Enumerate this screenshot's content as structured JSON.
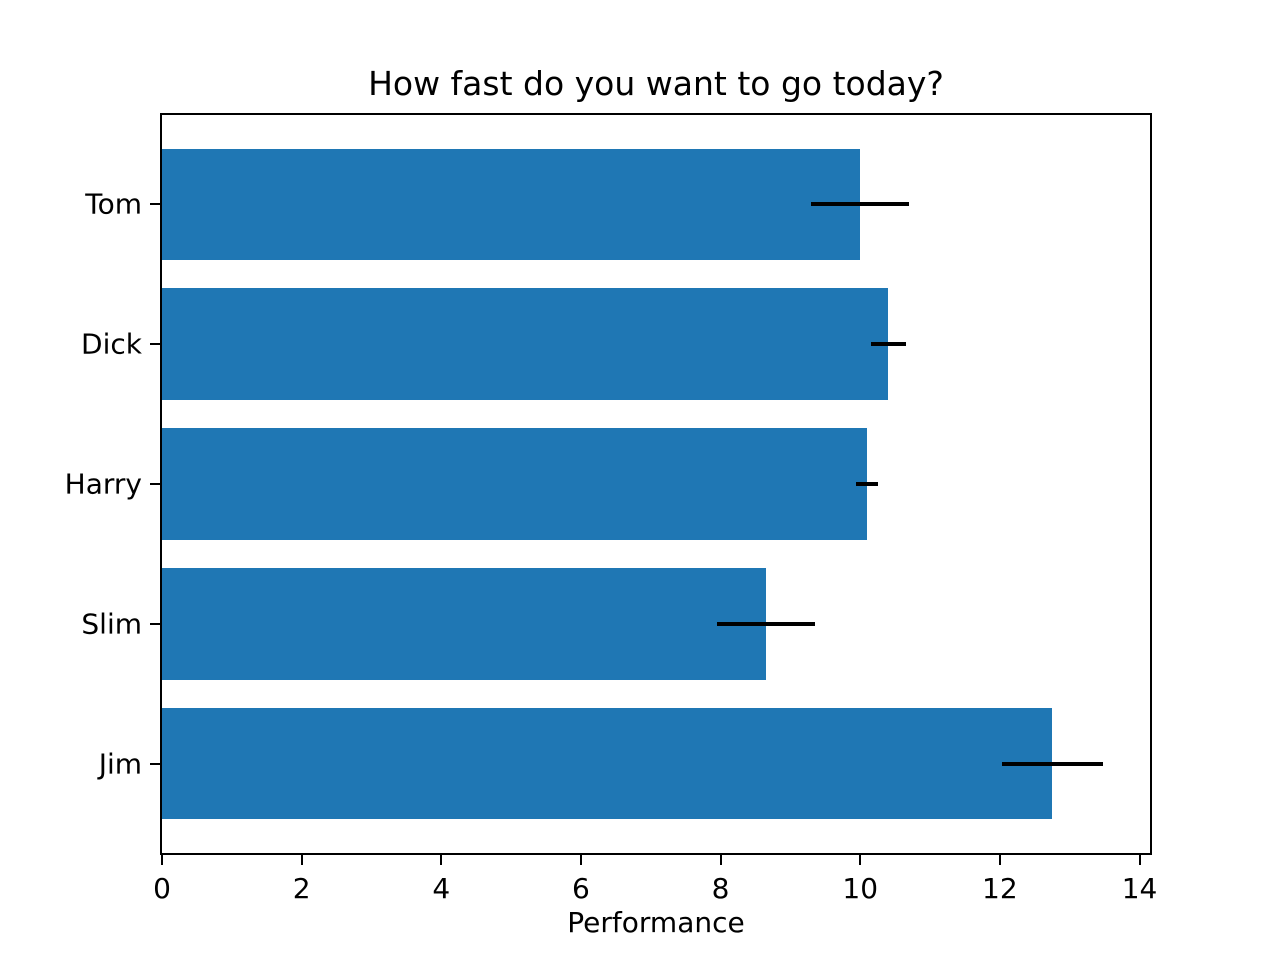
{
  "chart_data": {
    "type": "bar",
    "orientation": "horizontal",
    "title": "How fast do you want to go today?",
    "xlabel": "Performance",
    "ylabel": "",
    "categories": [
      "Tom",
      "Dick",
      "Harry",
      "Slim",
      "Jim"
    ],
    "values": [
      10.0,
      10.4,
      10.1,
      8.65,
      12.75
    ],
    "xerr": [
      0.7,
      0.25,
      0.16,
      0.7,
      0.72
    ],
    "xticks": [
      "0",
      "2",
      "4",
      "6",
      "8",
      "10",
      "12",
      "14"
    ],
    "xtick_values": [
      0,
      2,
      4,
      6,
      8,
      10,
      12,
      14
    ],
    "xlim": [
      0,
      14.15
    ],
    "bar_color": "#1f77b4",
    "error_bar_color": "#000000",
    "text_color": "#000000",
    "background_color": "#ffffff",
    "grid": false,
    "legend": null
  }
}
